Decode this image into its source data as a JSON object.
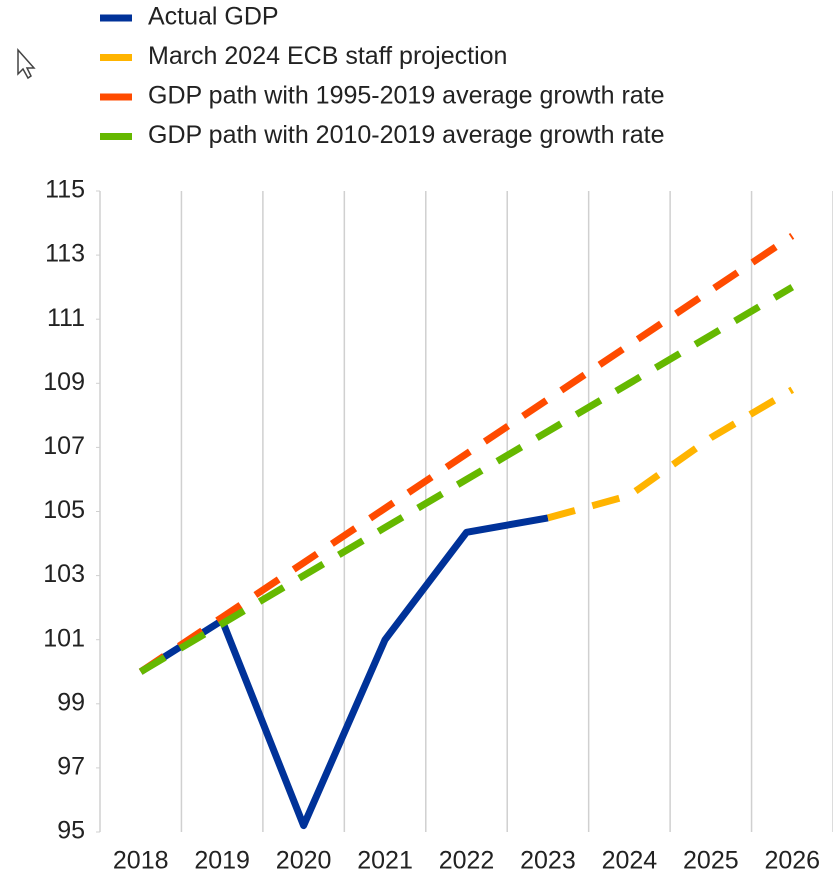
{
  "chart_data": {
    "type": "line",
    "categories": [
      "2018",
      "2019",
      "2020",
      "2021",
      "2022",
      "2023",
      "2024",
      "2025",
      "2026"
    ],
    "series": [
      {
        "name": "Actual GDP",
        "color": "#003299",
        "dashed": false,
        "values": [
          100,
          101.6,
          95.2,
          101,
          104.35,
          104.8,
          null,
          null,
          null
        ]
      },
      {
        "name": "March 2024 ECB staff projection",
        "color": "#ffb400",
        "dashed": true,
        "values": [
          null,
          null,
          null,
          null,
          null,
          104.8,
          105.5,
          107.3,
          108.8
        ]
      },
      {
        "name": "GDP path with 1995-2019 average growth rate",
        "color": "#ff4b00",
        "dashed": true,
        "values": [
          100,
          101.7,
          103.4,
          105.1,
          106.8,
          108.5,
          110.2,
          111.9,
          113.6
        ]
      },
      {
        "name": "GDP path with 2010-2019 average growth rate",
        "color": "#65b800",
        "dashed": true,
        "values": [
          100,
          101.5,
          103,
          104.5,
          106,
          107.5,
          109,
          110.5,
          112
        ]
      }
    ],
    "ylim": [
      95,
      115
    ],
    "yticks": [
      95,
      97,
      99,
      101,
      103,
      105,
      107,
      109,
      111,
      113,
      115
    ],
    "grid": true
  }
}
